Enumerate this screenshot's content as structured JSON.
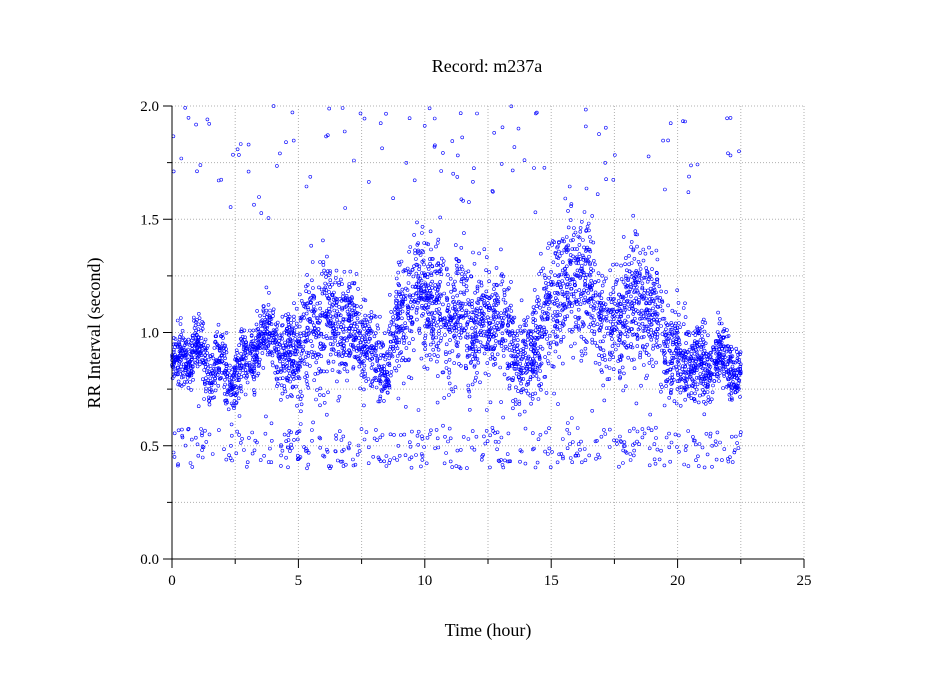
{
  "chart_data": {
    "type": "scatter",
    "title": "Record:  m237a",
    "xlabel": "Time (hour)",
    "ylabel": "RR Interval (second)",
    "xlim": [
      0,
      25
    ],
    "ylim": [
      0.0,
      2.0
    ],
    "x_ticks": [
      "0",
      "5",
      "10",
      "15",
      "20",
      "25"
    ],
    "y_ticks": [
      "0.0",
      "0.5",
      "1.0",
      "1.5",
      "2.0"
    ],
    "grid": true,
    "marker": "open-circle",
    "color": "#0000ff",
    "series_profile": {
      "x": [
        0.0,
        0.5,
        1.0,
        1.5,
        2.0,
        2.5,
        3.0,
        3.5,
        4.0,
        4.5,
        5.0,
        5.5,
        6.0,
        6.5,
        7.0,
        7.5,
        8.0,
        8.5,
        9.0,
        9.5,
        10.0,
        10.5,
        11.0,
        11.5,
        12.0,
        12.5,
        13.0,
        13.5,
        14.0,
        14.5,
        15.0,
        15.5,
        16.0,
        16.5,
        17.0,
        17.5,
        18.0,
        18.5,
        19.0,
        19.5,
        20.0,
        20.5,
        21.0,
        21.5,
        22.0,
        22.5
      ],
      "center": [
        0.85,
        0.85,
        0.88,
        0.85,
        0.88,
        0.84,
        0.9,
        0.92,
        0.95,
        0.85,
        1.0,
        1.05,
        1.05,
        1.0,
        0.98,
        0.98,
        0.95,
        0.9,
        1.05,
        1.12,
        1.15,
        1.12,
        1.1,
        1.12,
        1.05,
        1.0,
        1.02,
        0.95,
        0.92,
        1.05,
        1.12,
        1.18,
        1.2,
        1.22,
        1.1,
        1.05,
        1.12,
        1.08,
        1.05,
        1.0,
        0.95,
        0.9,
        0.85,
        0.82,
        0.85,
        0.8
      ],
      "spread": [
        0.1,
        0.12,
        0.12,
        0.12,
        0.12,
        0.12,
        0.12,
        0.12,
        0.14,
        0.18,
        0.2,
        0.24,
        0.24,
        0.22,
        0.18,
        0.18,
        0.16,
        0.16,
        0.22,
        0.24,
        0.24,
        0.24,
        0.24,
        0.24,
        0.22,
        0.2,
        0.2,
        0.18,
        0.18,
        0.24,
        0.26,
        0.28,
        0.28,
        0.26,
        0.24,
        0.22,
        0.24,
        0.24,
        0.22,
        0.2,
        0.18,
        0.16,
        0.14,
        0.12,
        0.12,
        0.1
      ]
    },
    "outlier_bands": [
      {
        "range": [
          0.4,
          0.58
        ]
      },
      {
        "range": [
          1.5,
          2.0
        ]
      }
    ],
    "x_end": 22.5
  }
}
